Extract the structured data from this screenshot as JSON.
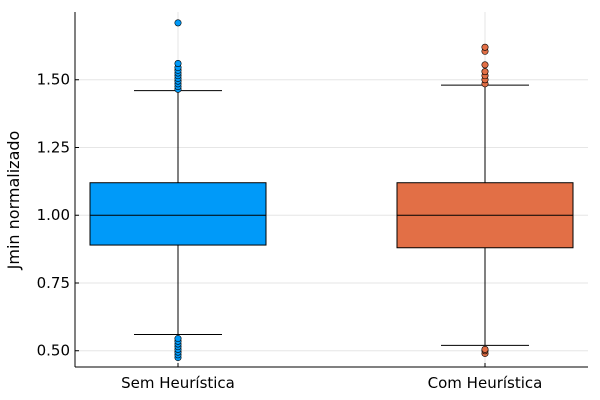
{
  "chart_data": {
    "type": "box",
    "title": "",
    "xlabel": "",
    "ylabel": "Jmin normalizado",
    "ylim": [
      0.44,
      1.75
    ],
    "yticks": [
      0.5,
      0.75,
      1.0,
      1.25,
      1.5
    ],
    "ytick_labels": [
      "0.50",
      "0.75",
      "1.00",
      "1.25",
      "1.50"
    ],
    "grid": true,
    "legend": "none",
    "categories": [
      "Sem Heurística",
      "Com Heurística"
    ],
    "series": [
      {
        "color": "#009af9",
        "q1": 0.89,
        "median": 1.0,
        "q3": 1.12,
        "whisker_low": 0.56,
        "whisker_high": 1.46,
        "outliers": [
          0.475,
          0.485,
          0.495,
          0.505,
          0.515,
          0.525,
          0.535,
          0.545,
          1.465,
          1.475,
          1.485,
          1.495,
          1.505,
          1.515,
          1.525,
          1.535,
          1.545,
          1.56,
          1.71
        ]
      },
      {
        "color": "#e26f46",
        "q1": 0.88,
        "median": 1.0,
        "q3": 1.12,
        "whisker_low": 0.52,
        "whisker_high": 1.48,
        "outliers": [
          0.49,
          0.5,
          0.505,
          1.485,
          1.5,
          1.515,
          1.53,
          1.555,
          1.605,
          1.62
        ]
      }
    ]
  }
}
